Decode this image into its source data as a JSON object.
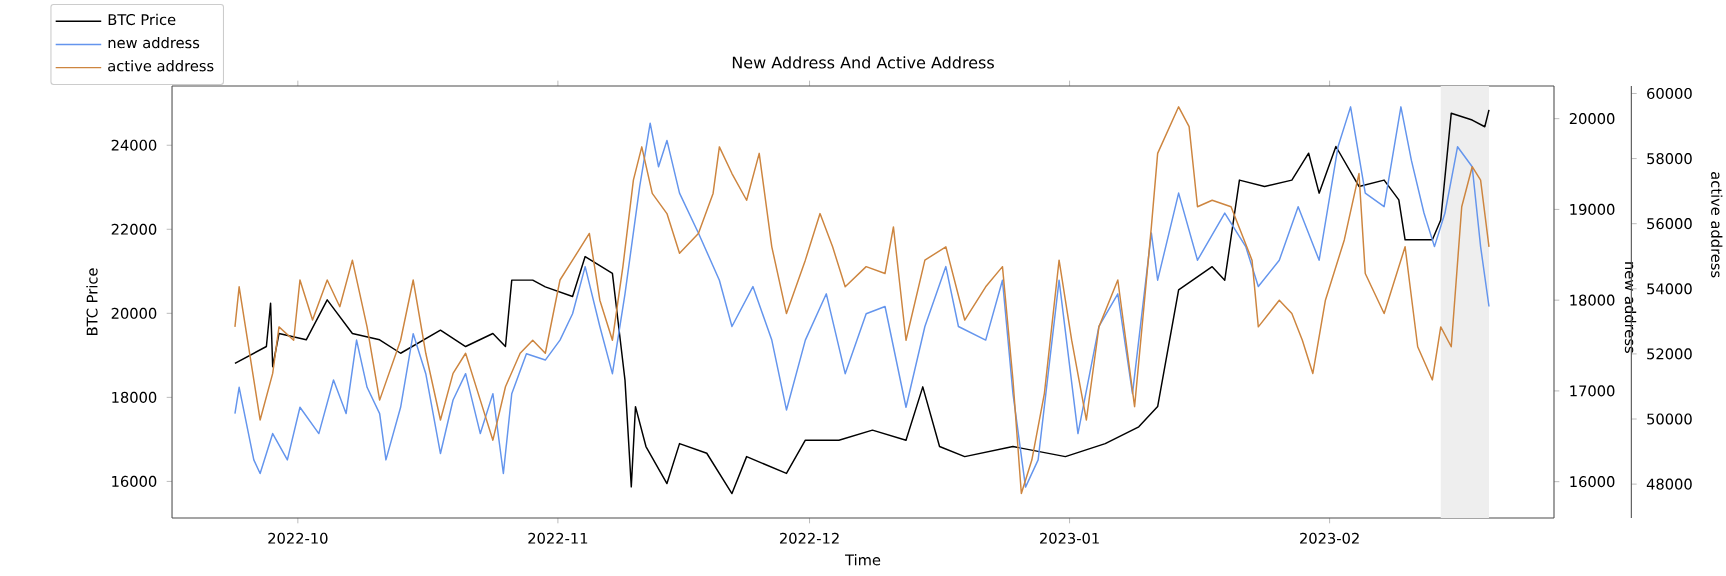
{
  "chart_data": {
    "type": "line",
    "title": "New Address And Active Address",
    "xlabel": "Time",
    "ylabel": "BTC Price",
    "y2label": "new address",
    "y3label": "active address",
    "xlim": [
      "2022-09-16T00:00",
      "2023-02-27T18:00"
    ],
    "xticks": [
      {
        "value": "2022-10-01",
        "label": "2022-10"
      },
      {
        "value": "2022-11-01",
        "label": "2022-11"
      },
      {
        "value": "2022-12-01",
        "label": "2022-12"
      },
      {
        "value": "2023-01-01",
        "label": "2023-01"
      },
      {
        "value": "2023-02-01",
        "label": "2023-02"
      }
    ],
    "ylim": [
      15130,
      25410
    ],
    "yticks": [
      16000,
      18000,
      20000,
      22000,
      24000
    ],
    "y2lim": [
      15600,
      20360
    ],
    "y2ticks": [
      16000,
      17000,
      18000,
      19000,
      20000
    ],
    "y3lim": [
      46960,
      60230
    ],
    "y3ticks": [
      48000,
      50000,
      52000,
      54000,
      56000,
      58000,
      60000
    ],
    "legend": "top left",
    "bands": [
      {
        "axis": "x",
        "from": "2023-02-14T06:00",
        "to": "2023-02-20T00:00",
        "color": "#eeeeee"
      }
    ],
    "series": [
      {
        "name": "BTC Price",
        "color": "#000000",
        "x": [
          "2022-09-23T12:00",
          "2022-09-27T06:00",
          "2022-09-27T18:00",
          "2022-09-28T00:00",
          "2022-09-28T18:00",
          "2022-10-02T00:00",
          "2022-10-04T12:00",
          "2022-10-07T12:00",
          "2022-10-10T18:00",
          "2022-10-13T06:00",
          "2022-10-18T00:00",
          "2022-10-21T00:00",
          "2022-10-24T06:00",
          "2022-10-25T18:00",
          "2022-10-26T12:00",
          "2022-10-29T00:00",
          "2022-10-30T12:00",
          "2022-11-02T18:00",
          "2022-11-04T06:00",
          "2022-11-07T12:00",
          "2022-11-08T06:00",
          "2022-11-09T00:00",
          "2022-11-09T18:00",
          "2022-11-10T06:00",
          "2022-11-11T12:00",
          "2022-11-14T00:00",
          "2022-11-15T12:00",
          "2022-11-18T18:00",
          "2022-11-21T18:00",
          "2022-11-23T12:00",
          "2022-11-28T06:00",
          "2022-11-30T12:00",
          "2022-12-04T12:00",
          "2022-12-08T12:00",
          "2022-12-12T12:00",
          "2022-12-14T12:00",
          "2022-12-16T12:00",
          "2022-12-19T12:00",
          "2022-12-25T06:00",
          "2022-12-31T12:00",
          "2023-01-05T06:00",
          "2023-01-09T06:00",
          "2023-01-11T12:00",
          "2023-01-14T00:00",
          "2023-01-18T00:00",
          "2023-01-19T12:00",
          "2023-01-21T06:00",
          "2023-01-24T06:00",
          "2023-01-27T12:00",
          "2023-01-29T12:00",
          "2023-01-30T18:00",
          "2023-02-01T18:00",
          "2023-02-04T12:00",
          "2023-02-07T12:00",
          "2023-02-09T06:00",
          "2023-02-10T00:00",
          "2023-02-13T06:00",
          "2023-02-14T06:00",
          "2023-02-15T12:00",
          "2023-02-18T00:00",
          "2023-02-19T12:00",
          "2023-02-20T00:00"
        ],
        "values": [
          18810,
          19210,
          20240,
          18730,
          19520,
          19370,
          20320,
          19520,
          19370,
          19050,
          19600,
          19210,
          19520,
          19210,
          20790,
          20790,
          20630,
          20400,
          21350,
          20950,
          19680,
          18410,
          15870,
          17780,
          16830,
          15950,
          16900,
          16670,
          15710,
          16590,
          16190,
          16980,
          16980,
          17220,
          16980,
          18250,
          16830,
          16590,
          16830,
          16590,
          16900,
          17300,
          17780,
          20560,
          21110,
          20790,
          23170,
          23020,
          23170,
          23810,
          22860,
          23970,
          23020,
          23170,
          22700,
          21750,
          21750,
          22220,
          24760,
          24600,
          24440,
          24840
        ]
      },
      {
        "name": "new address",
        "color": "#6495ed",
        "axis": "y2",
        "x": [
          "2022-09-23T12:00",
          "2022-09-24T00:00",
          "2022-09-25T18:00",
          "2022-09-26T12:00",
          "2022-09-28T00:00",
          "2022-09-29T18:00",
          "2022-10-01T06:00",
          "2022-10-03T12:00",
          "2022-10-05T06:00",
          "2022-10-06T18:00",
          "2022-10-08T00:00",
          "2022-10-09T06:00",
          "2022-10-10T18:00",
          "2022-10-11T12:00",
          "2022-10-13T06:00",
          "2022-10-14T18:00",
          "2022-10-16T06:00",
          "2022-10-18T00:00",
          "2022-10-19T12:00",
          "2022-10-21T00:00",
          "2022-10-22T18:00",
          "2022-10-24T06:00",
          "2022-10-25T12:00",
          "2022-10-26T12:00",
          "2022-10-28T06:00",
          "2022-10-30T12:00",
          "2022-11-01T06:00",
          "2022-11-02T18:00",
          "2022-11-04T06:00",
          "2022-11-06T00:00",
          "2022-11-07T12:00",
          "2022-11-09T00:00",
          "2022-11-10T18:00",
          "2022-11-12T00:00",
          "2022-11-13T00:00",
          "2022-11-14T00:00",
          "2022-11-15T12:00",
          "2022-11-17T18:00",
          "2022-11-20T06:00",
          "2022-11-21T18:00",
          "2022-11-24T06:00",
          "2022-11-26T12:00",
          "2022-11-28T06:00",
          "2022-11-30T12:00",
          "2022-12-03T00:00",
          "2022-12-05T06:00",
          "2022-12-07T18:00",
          "2022-12-10T00:00",
          "2022-12-12T12:00",
          "2022-12-14T18:00",
          "2022-12-17T06:00",
          "2022-12-18T18:00",
          "2022-12-22T00:00",
          "2022-12-24T00:00",
          "2022-12-25T06:00",
          "2022-12-26T18:00",
          "2022-12-28T06:00",
          "2022-12-30T18:00",
          "2023-01-02T00:00",
          "2023-01-04T12:00",
          "2023-01-06T18:00",
          "2023-01-08T12:00",
          "2023-01-10T18:00",
          "2023-01-11T12:00",
          "2023-01-14T00:00",
          "2023-01-16T06:00",
          "2023-01-19T12:00",
          "2023-01-22T00:00",
          "2023-01-23T12:00",
          "2023-01-26T00:00",
          "2023-01-28T06:00",
          "2023-01-30T18:00",
          "2023-02-02T00:00",
          "2023-02-03T12:00",
          "2023-02-05T06:00",
          "2023-02-07T12:00",
          "2023-02-09T12:00",
          "2023-02-10T18:00",
          "2023-02-12T06:00",
          "2023-02-13T12:00",
          "2023-02-14T18:00",
          "2023-02-16T06:00",
          "2023-02-18T00:00",
          "2023-02-19T00:00",
          "2023-02-20T00:00"
        ],
        "values": [
          16750,
          17040,
          16240,
          16090,
          16530,
          16240,
          16820,
          16530,
          17120,
          16750,
          17560,
          17040,
          16750,
          16240,
          16820,
          17630,
          17190,
          16310,
          16900,
          17190,
          16530,
          16970,
          16090,
          16970,
          17410,
          17340,
          17560,
          17850,
          18370,
          17710,
          17190,
          18070,
          19250,
          19950,
          19470,
          19760,
          19180,
          18740,
          18220,
          17710,
          18150,
          17560,
          16790,
          17560,
          18070,
          17190,
          17850,
          17930,
          16820,
          17710,
          18370,
          17710,
          17560,
          18220,
          16970,
          15940,
          16240,
          18220,
          16530,
          17710,
          18070,
          16970,
          18740,
          18220,
          19180,
          18440,
          18960,
          18590,
          18150,
          18440,
          19030,
          18440,
          19690,
          20130,
          19180,
          19030,
          20130,
          19540,
          18960,
          18590,
          18960,
          19690,
          19470,
          18590,
          17930
        ]
      },
      {
        "name": "active address",
        "color": "#cd853f",
        "axis": "y3",
        "x": [
          "2022-09-23T12:00",
          "2022-09-24T00:00",
          "2022-09-25T18:00",
          "2022-09-26T12:00",
          "2022-09-28T00:00",
          "2022-09-28T18:00",
          "2022-09-30T12:00",
          "2022-10-01T06:00",
          "2022-10-02T18:00",
          "2022-10-04T12:00",
          "2022-10-06T00:00",
          "2022-10-07T12:00",
          "2022-10-09T06:00",
          "2022-10-10T18:00",
          "2022-10-13T06:00",
          "2022-10-14T18:00",
          "2022-10-16T06:00",
          "2022-10-18T00:00",
          "2022-10-19T12:00",
          "2022-10-21T00:00",
          "2022-10-22T18:00",
          "2022-10-24T06:00",
          "2022-10-25T18:00",
          "2022-10-27T12:00",
          "2022-10-29T00:00",
          "2022-10-30T12:00",
          "2022-11-01T06:00",
          "2022-11-02T18:00",
          "2022-11-04T18:00",
          "2022-11-06T00:00",
          "2022-11-07T12:00",
          "2022-11-08T18:00",
          "2022-11-10T00:00",
          "2022-11-11T00:00",
          "2022-11-12T06:00",
          "2022-11-14T00:00",
          "2022-11-15T12:00",
          "2022-11-17T18:00",
          "2022-11-19T12:00",
          "2022-11-20T06:00",
          "2022-11-21T18:00",
          "2022-11-23T12:00",
          "2022-11-25T00:00",
          "2022-11-26T12:00",
          "2022-11-28T06:00",
          "2022-11-30T12:00",
          "2022-12-02T06:00",
          "2022-12-03T18:00",
          "2022-12-05T06:00",
          "2022-12-07T18:00",
          "2022-12-10T00:00",
          "2022-12-11T00:00",
          "2022-12-12T12:00",
          "2022-12-14T18:00",
          "2022-12-17T06:00",
          "2022-12-19T12:00",
          "2022-12-22T00:00",
          "2022-12-24T00:00",
          "2022-12-25T06:00",
          "2022-12-26T06:00",
          "2022-12-27T12:00",
          "2022-12-29T00:00",
          "2022-12-30T18:00",
          "2023-01-01T06:00",
          "2023-01-03T00:00",
          "2023-01-04T12:00",
          "2023-01-06T18:00",
          "2023-01-08T18:00",
          "2023-01-10T18:00",
          "2023-01-11T12:00",
          "2023-01-14T00:00",
          "2023-01-15T06:00",
          "2023-01-16T06:00",
          "2023-01-18T00:00",
          "2023-01-20T06:00",
          "2023-01-22T18:00",
          "2023-01-23T12:00",
          "2023-01-26T00:00",
          "2023-01-27T12:00",
          "2023-01-28T18:00",
          "2023-01-30T00:00",
          "2023-01-31T12:00",
          "2023-02-02T18:00",
          "2023-02-04T12:00",
          "2023-02-05T06:00",
          "2023-02-07T12:00",
          "2023-02-10T00:00",
          "2023-02-11T12:00",
          "2023-02-13T06:00",
          "2023-02-14T06:00",
          "2023-02-15T12:00",
          "2023-02-16T18:00",
          "2023-02-18T00:00",
          "2023-02-19T00:00",
          "2023-02-20T00:00"
        ],
        "values": [
          52830,
          54060,
          51200,
          49970,
          51400,
          52830,
          52420,
          54270,
          53040,
          54270,
          53450,
          54880,
          52830,
          50580,
          52420,
          54270,
          52020,
          49970,
          51400,
          52020,
          50580,
          49350,
          50990,
          52020,
          52420,
          52020,
          54270,
          54880,
          55700,
          53650,
          52420,
          54680,
          57340,
          58360,
          56930,
          56310,
          55090,
          55700,
          56930,
          58360,
          57540,
          56720,
          58160,
          55290,
          53240,
          54880,
          56310,
          55290,
          54060,
          54680,
          54470,
          55900,
          52420,
          54880,
          55290,
          53040,
          54060,
          54680,
          51200,
          47710,
          48740,
          50790,
          54880,
          52420,
          49970,
          52830,
          54270,
          50380,
          55900,
          58160,
          59590,
          58980,
          56520,
          56720,
          56520,
          54880,
          52830,
          53650,
          53240,
          52420,
          51400,
          53650,
          55500,
          57540,
          54470,
          53240,
          55290,
          52220,
          51200,
          52830,
          52220,
          56520,
          57750,
          57340,
          55290
        ]
      }
    ]
  }
}
